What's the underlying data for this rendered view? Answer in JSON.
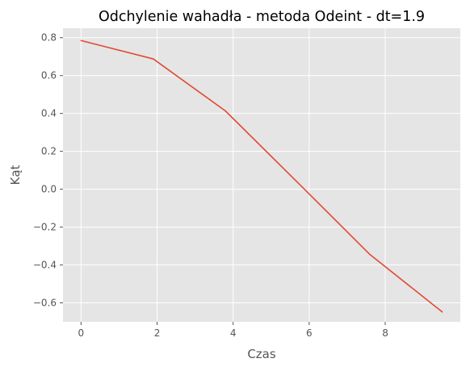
{
  "chart_data": {
    "type": "line",
    "title": "Odchylenie wahadła - metoda Odeint - dt=1.9",
    "xlabel": "Czas",
    "ylabel": "Kąt",
    "xlim": [
      -0.475,
      9.975
    ],
    "ylim": [
      -0.7,
      0.85
    ],
    "xticks": [
      0,
      2,
      4,
      6,
      8
    ],
    "xtick_labels": [
      "0",
      "2",
      "4",
      "6",
      "8"
    ],
    "yticks": [
      -0.6,
      -0.4,
      -0.2,
      0.0,
      0.2,
      0.4,
      0.6,
      0.8
    ],
    "ytick_labels": [
      "−0.6",
      "−0.4",
      "−0.2",
      "0.0",
      "0.2",
      "0.4",
      "0.6",
      "0.8"
    ],
    "grid": true,
    "series": [
      {
        "x": [
          0,
          1.9,
          3.8,
          5.7,
          7.6,
          9.5
        ],
        "y": [
          0.785,
          0.688,
          0.413,
          0.035,
          -0.345,
          -0.648
        ],
        "color": "#E24A33"
      }
    ],
    "colors": {
      "plot_background": "#E5E5E5",
      "grid": "#FFFFFF",
      "tick_color": "#555555"
    }
  }
}
